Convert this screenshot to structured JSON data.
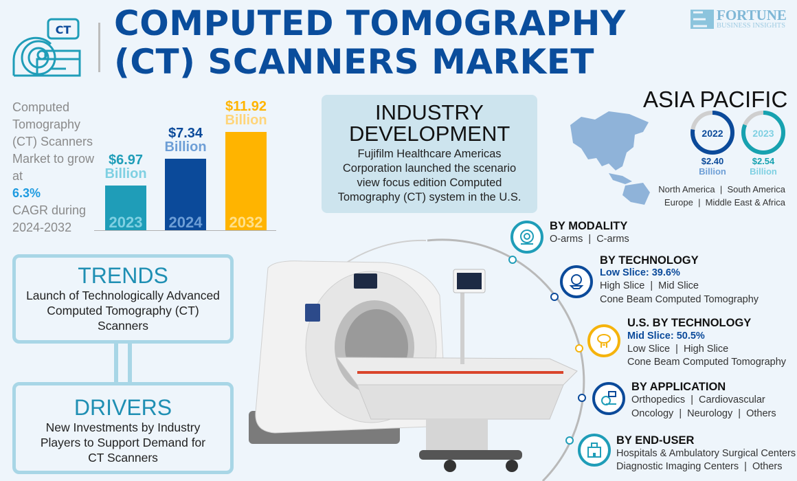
{
  "header": {
    "title_line1": "COMPUTED TOMOGRAPHY",
    "title_line2": "(CT) SCANNERS MARKET",
    "icon_badge": "CT",
    "logo_name": "FORTUNE",
    "logo_sub": "BUSINESS INSIGHTS"
  },
  "cagr": {
    "text_before": "Computed Tomography (CT) Scanners Market to grow at",
    "rate": "6.3%",
    "text_after": "CAGR during 2024-2032"
  },
  "market_size": [
    {
      "year": "2023",
      "value": "$6.97",
      "unit": "Billion",
      "color": "#1f9db8"
    },
    {
      "year": "2024",
      "value": "$7.34",
      "unit": "Billion",
      "color": "#0b4a9a"
    },
    {
      "year": "2032",
      "value": "$11.92",
      "unit": "Billion",
      "color": "#ffb400"
    }
  ],
  "industry": {
    "title": "INDUSTRY DEVELOPMENT",
    "text": "Fujifilm Healthcare Americas Corporation launched the scenario view focus edition Computed Tomography (CT) system in the U.S."
  },
  "trends": {
    "title": "TRENDS",
    "text": "Launch of Technologically Advanced Computed Tomography (CT) Scanners"
  },
  "drivers": {
    "title": "DRIVERS",
    "text": "New Investments by Industry Players to Support Demand for CT Scanners"
  },
  "region": {
    "title": "ASIA PACIFIC",
    "donuts": [
      {
        "year": "2022",
        "value": "$2.40",
        "unit": "Billion",
        "color": "#0b4a9a"
      },
      {
        "year": "2023",
        "value": "$2.54",
        "unit": "Billion",
        "color": "#17a2b0"
      }
    ],
    "others_line1": "North America  |  South America",
    "others_line2": "Europe  |  Middle East & Africa"
  },
  "segments": [
    {
      "title": "BY MODALITY",
      "icon": "ct-gantry-icon",
      "color": "#1f9db8",
      "lines": [
        "O-arms  |  C-arms"
      ]
    },
    {
      "title": "BY TECHNOLOGY",
      "icon": "ct-scanner-icon",
      "color": "#0b4a9a",
      "highlight": "Low Slice: 39.6%",
      "lines": [
        "High Slice  |  Mid Slice",
        "Cone Beam Computed Tomography"
      ]
    },
    {
      "title": "U.S. BY TECHNOLOGY",
      "icon": "ct-scanner-icon",
      "color": "#f5b30c",
      "highlight": "Mid Slice: 50.5%",
      "lines": [
        "Low Slice  |  High Slice",
        "Cone Beam Computed Tomography"
      ]
    },
    {
      "title": "BY APPLICATION",
      "icon": "ct-monitor-icon",
      "color": "#0b4a9a",
      "lines": [
        "Orthopedics  |  Cardiovascular",
        "Oncology  |  Neurology  |  Others"
      ]
    },
    {
      "title": "BY END-USER",
      "icon": "hospital-icon",
      "color": "#1f9db8",
      "lines": [
        "Hospitals & Ambulatory Surgical Centers",
        "Diagnostic Imaging Centers  |  Others"
      ]
    }
  ]
}
